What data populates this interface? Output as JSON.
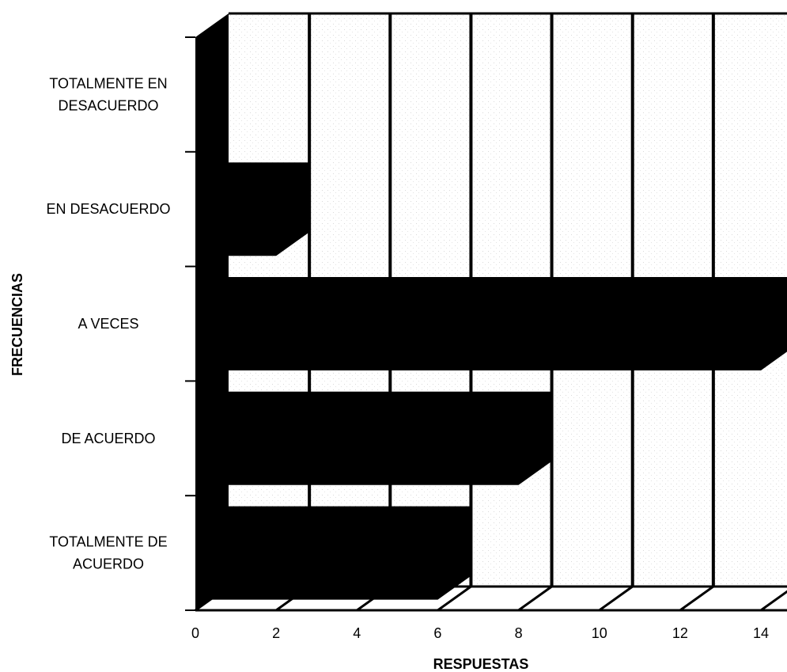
{
  "chart_data": {
    "type": "bar",
    "orientation": "horizontal",
    "three_d": true,
    "categories": [
      "TOTALMENTE EN DESACUERDO",
      "EN DESACUERDO",
      "A VECES",
      "DE ACUERDO",
      "TOTALMENTE DE ACUERDO"
    ],
    "category_lines": [
      [
        "TOTALMENTE EN",
        "DESACUERDO"
      ],
      [
        "EN DESACUERDO"
      ],
      [
        "A VECES"
      ],
      [
        "DE ACUERDO"
      ],
      [
        "TOTALMENTE DE",
        "ACUERDO"
      ]
    ],
    "values": [
      0,
      2,
      14,
      8,
      6
    ],
    "xlabel": "RESPUESTAS",
    "ylabel": "FRECUENCIAS",
    "xlim": [
      0,
      14
    ],
    "xticks": [
      0,
      2,
      4,
      6,
      8,
      10,
      12,
      14
    ],
    "grid": true,
    "bar_color": "#000000",
    "background_color": "#ffffff"
  }
}
